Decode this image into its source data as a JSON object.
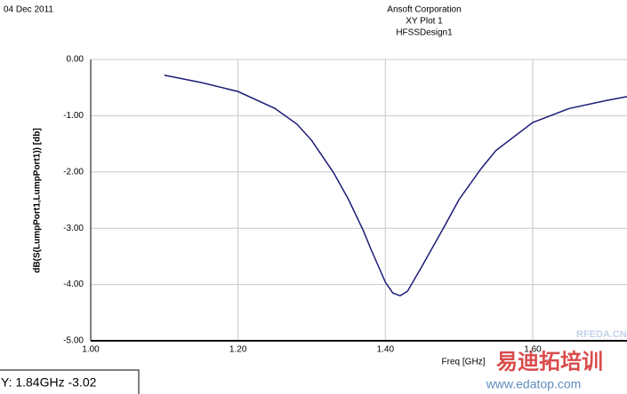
{
  "chart_data": {
    "type": "line",
    "date": "04 Dec 2011",
    "title": "Ansoft Corporation",
    "subtitle": "XY Plot 1",
    "design": "HFSSDesign1",
    "xlabel": "Freq [GHz]",
    "ylabel": "dB(S(LumpPort1,LumpPort1)) [db]",
    "marker_label": "Y: 1.84GHz -3.02",
    "watermarks": [
      "RFEDA.CN",
      "易迪拓培训",
      "www.edatop.com"
    ],
    "grid": true,
    "xlim": [
      1.0,
      1.728
    ],
    "ylim": [
      -5.0,
      0.0
    ],
    "xticks": [
      {
        "value": 1.0,
        "label": "1.00"
      },
      {
        "value": 1.2,
        "label": "1.20"
      },
      {
        "value": 1.4,
        "label": "1.40"
      },
      {
        "value": 1.6,
        "label": "1.60"
      }
    ],
    "yticks": [
      {
        "value": 0.0,
        "label": "0.00"
      },
      {
        "value": -1.0,
        "label": "-1.00"
      },
      {
        "value": -2.0,
        "label": "-2.00"
      },
      {
        "value": -3.0,
        "label": "-3.00"
      },
      {
        "value": -4.0,
        "label": "-4.00"
      },
      {
        "value": -5.0,
        "label": "-5.00"
      }
    ],
    "series": [
      {
        "color": "#1c1c78",
        "x": [
          1.1,
          1.15,
          1.2,
          1.25,
          1.28,
          1.3,
          1.33,
          1.35,
          1.37,
          1.38,
          1.4,
          1.41,
          1.42,
          1.43,
          1.45,
          1.48,
          1.5,
          1.53,
          1.55,
          1.6,
          1.65,
          1.7,
          1.728
        ],
        "values": [
          -0.28,
          -0.41,
          -0.57,
          -0.87,
          -1.15,
          -1.44,
          -2.02,
          -2.49,
          -3.04,
          -3.36,
          -3.96,
          -4.15,
          -4.2,
          -4.12,
          -3.67,
          -2.97,
          -2.49,
          -1.94,
          -1.62,
          -1.12,
          -0.87,
          -0.73,
          -0.66
        ]
      }
    ]
  }
}
